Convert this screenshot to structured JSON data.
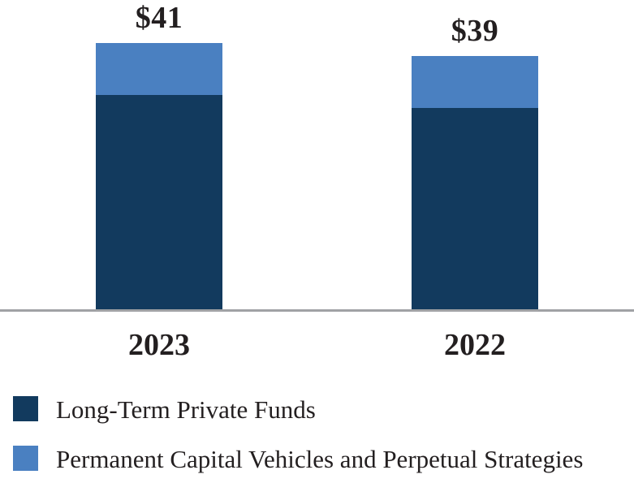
{
  "chart_data": {
    "type": "bar",
    "stacked": true,
    "title": "",
    "categories": [
      "2023",
      "2022"
    ],
    "totals": [
      41,
      39
    ],
    "total_labels": [
      "$41",
      "$39"
    ],
    "series": [
      {
        "name": "Long-Term Private Funds",
        "color": "#123A5E",
        "values": [
          33,
          31
        ]
      },
      {
        "name": "Permanent Capital Vehicles and Perpetual Strategies",
        "color": "#4A80C1",
        "values": [
          8,
          8
        ]
      }
    ],
    "ylim": [
      0,
      45
    ],
    "grid": false,
    "legend_position": "bottom-left",
    "axis_line_color": "#A0A2A5",
    "label_color": "#231F20"
  }
}
